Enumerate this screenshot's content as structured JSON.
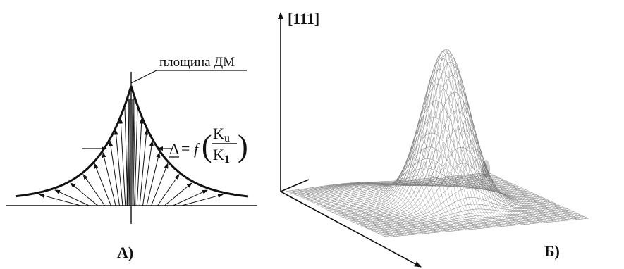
{
  "panel_a": {
    "label": "А)",
    "plane_label": "площина ДМ",
    "formula": {
      "delta": "Δ",
      "equals": "=",
      "func": "f",
      "num": "K",
      "num_sub": "u",
      "den": "K",
      "den_sub": "1"
    }
  },
  "panel_b": {
    "label": "Б)",
    "axis_label": "[111]"
  }
}
